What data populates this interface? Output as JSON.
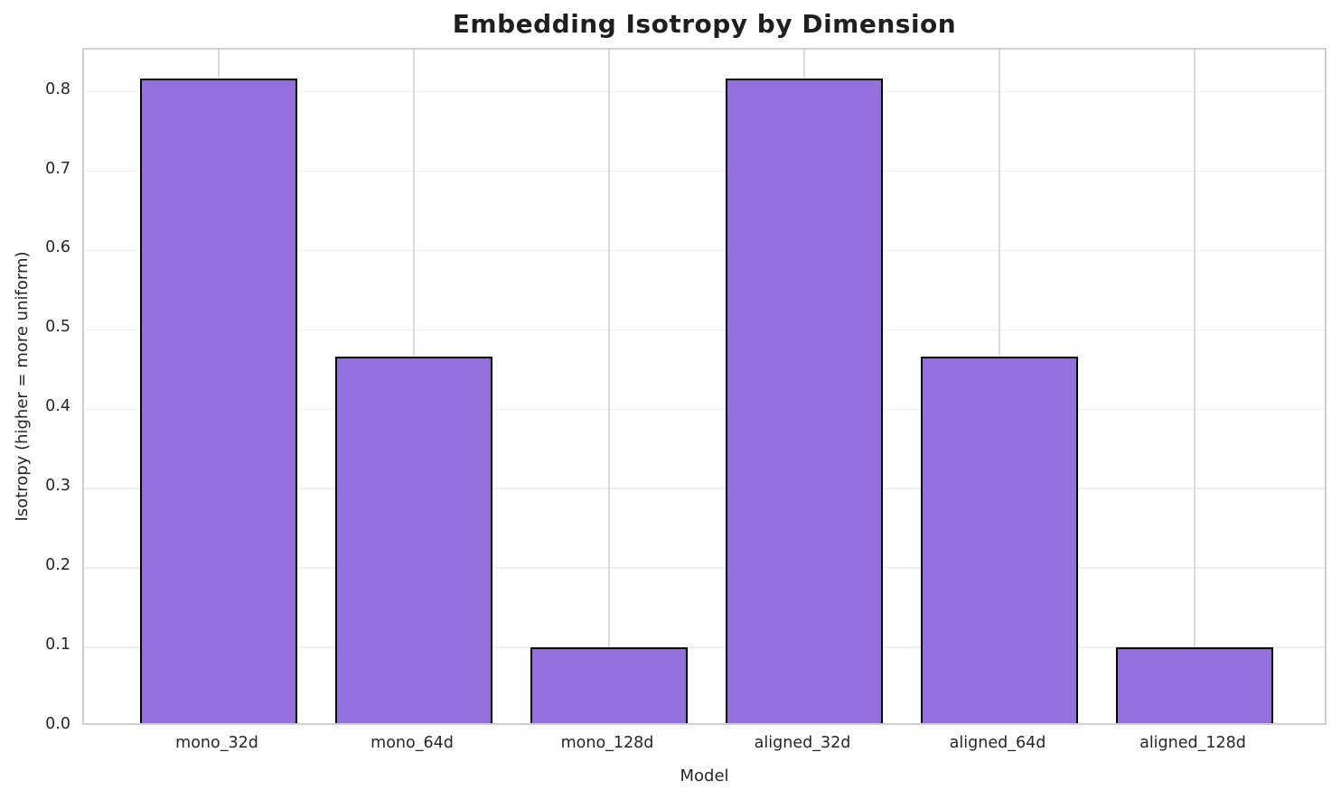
{
  "figure": {
    "title": "Embedding Isotropy by Dimension",
    "xlabel": "Model",
    "ylabel": "Isotropy (higher = more uniform)"
  },
  "chart_data": {
    "type": "bar",
    "title": "Embedding Isotropy by Dimension",
    "xlabel": "Model",
    "ylabel": "Isotropy (higher = more uniform)",
    "categories": [
      "mono_32d",
      "mono_64d",
      "mono_128d",
      "aligned_32d",
      "aligned_64d",
      "aligned_128d"
    ],
    "values": [
      0.812,
      0.462,
      0.095,
      0.812,
      0.462,
      0.095
    ],
    "ylim": [
      0.0,
      0.853
    ],
    "yticks": [
      0.0,
      0.1,
      0.2,
      0.3,
      0.4,
      0.5,
      0.6,
      0.7,
      0.8
    ],
    "ytick_labels": [
      "0.0",
      "0.1",
      "0.2",
      "0.3",
      "0.4",
      "0.5",
      "0.6",
      "0.7",
      "0.8"
    ],
    "grid": true,
    "legend": false,
    "bar_color": "#9370DB",
    "bar_edge_color": "#000000",
    "text_color": "#262626",
    "spine_color": "#d0d0d0",
    "gridline_color": "#ededed"
  }
}
